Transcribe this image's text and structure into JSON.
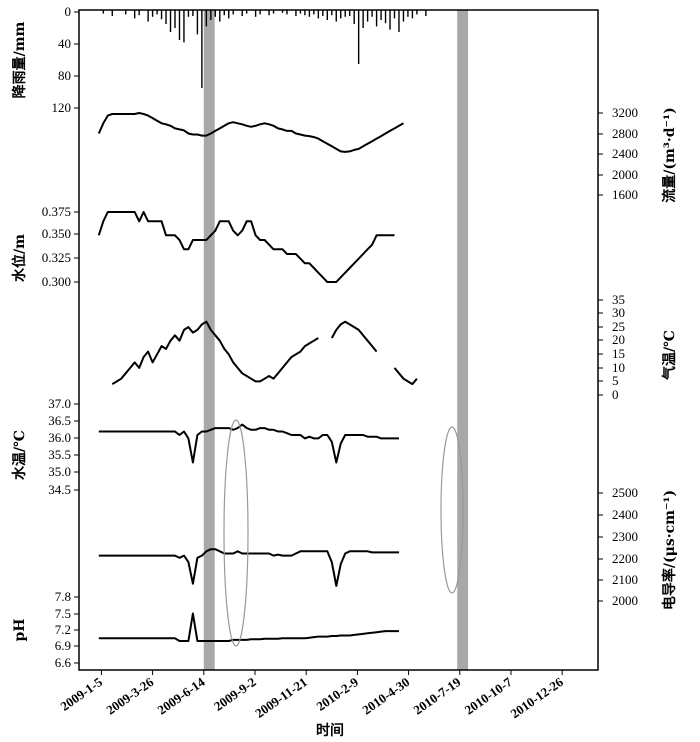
{
  "chart_data": {
    "type": "line",
    "x_axis": {
      "label": "时间",
      "tick_labels": [
        "2009-1-5",
        "2009-3-26",
        "2009-6-14",
        "2009-9-2",
        "2009-11-21",
        "2010-2-9",
        "2010-4-30",
        "2010-7-19",
        "2010-10-7",
        "2010-12-26"
      ]
    },
    "highlight_bands": [
      {
        "from": "2009-6-14",
        "to": "2009-7-1"
      },
      {
        "from": "2010-7-15",
        "to": "2010-8-1"
      }
    ],
    "panels": [
      {
        "key": "rain",
        "axis_label": "降雨量/mm",
        "axis_side": "left",
        "ticks": [
          "0",
          "40",
          "80",
          "120"
        ],
        "inverted": true,
        "ylim": [
          0,
          120
        ],
        "series": {
          "start": "2009-1-1",
          "step_days": 7,
          "values": [
            0,
            2,
            0,
            5,
            0,
            0,
            3,
            0,
            8,
            4,
            0,
            12,
            6,
            3,
            9,
            15,
            25,
            20,
            35,
            38,
            6,
            5,
            28,
            95,
            18,
            10,
            6,
            12,
            4,
            8,
            3,
            0,
            5,
            2,
            0,
            6,
            3,
            0,
            4,
            2,
            0,
            1,
            3,
            0,
            5,
            2,
            4,
            6,
            3,
            8,
            5,
            10,
            4,
            12,
            8,
            6,
            5,
            15,
            65,
            20,
            12,
            6,
            18,
            10,
            14,
            22,
            8,
            25,
            12,
            6,
            8,
            3,
            0,
            5
          ]
        }
      },
      {
        "key": "flow",
        "axis_label": "流量/(m³·d⁻¹)",
        "axis_side": "right",
        "ticks": [
          "3200",
          "2800",
          "2400",
          "2000",
          "1600"
        ],
        "ylim": [
          1600,
          3200
        ],
        "series": {
          "start": "2009-1-1",
          "step_days": 7,
          "values": [
            2800,
            3000,
            3150,
            3180,
            3180,
            3180,
            3180,
            3180,
            3180,
            3200,
            3180,
            3150,
            3100,
            3050,
            3000,
            2980,
            2950,
            2900,
            2880,
            2860,
            2800,
            2780,
            2780,
            2760,
            2760,
            2800,
            2850,
            2900,
            2950,
            3000,
            3020,
            3000,
            2980,
            2950,
            2930,
            2950,
            2980,
            3000,
            2980,
            2950,
            2900,
            2880,
            2850,
            2850,
            2800,
            2780,
            2760,
            2750,
            2730,
            2700,
            2650,
            2600,
            2550,
            2500,
            2450,
            2440,
            2450,
            2480,
            2500,
            2550,
            2600,
            2650,
            2700,
            2750,
            2800,
            2850,
            2900,
            2950,
            3000
          ]
        }
      },
      {
        "key": "level",
        "axis_label": "水位/m",
        "axis_side": "left",
        "ticks": [
          "0.375",
          "0.350",
          "0.325",
          "0.300"
        ],
        "ylim": [
          0.3,
          0.375
        ],
        "series": {
          "start": "2009-1-1",
          "step_days": 7,
          "values": [
            0.35,
            0.365,
            0.375,
            0.375,
            0.375,
            0.375,
            0.375,
            0.375,
            0.375,
            0.365,
            0.375,
            0.365,
            0.365,
            0.365,
            0.365,
            0.35,
            0.35,
            0.35,
            0.345,
            0.335,
            0.335,
            0.345,
            0.345,
            0.345,
            0.345,
            0.35,
            0.355,
            0.365,
            0.365,
            0.365,
            0.355,
            0.35,
            0.355,
            0.365,
            0.365,
            0.35,
            0.345,
            0.345,
            0.34,
            0.335,
            0.335,
            0.335,
            0.33,
            0.33,
            0.33,
            0.325,
            0.32,
            0.32,
            0.315,
            0.31,
            0.305,
            0.3,
            0.3,
            0.3,
            0.305,
            0.31,
            0.315,
            0.32,
            0.325,
            0.33,
            0.335,
            0.34,
            0.35,
            0.35,
            0.35,
            0.35,
            0.35
          ]
        }
      },
      {
        "key": "airtemp",
        "axis_label": "气温/℃",
        "axis_side": "right",
        "ticks": [
          "35",
          "30",
          "25",
          "20",
          "15",
          "10",
          "5",
          "0"
        ],
        "ylim": [
          0,
          35
        ],
        "series": {
          "start": "2009-1-22",
          "step_days": 7,
          "values": [
            4,
            5,
            6,
            8,
            10,
            12,
            10,
            14,
            16,
            12,
            15,
            18,
            17,
            20,
            22,
            20,
            24,
            25,
            23,
            24,
            26,
            27,
            24,
            22,
            20,
            17,
            15,
            12,
            10,
            8,
            7,
            6,
            5,
            5,
            6,
            7,
            6,
            8,
            10,
            12,
            14,
            15,
            16,
            18,
            19,
            20,
            21,
            null,
            null,
            21,
            24,
            26,
            27,
            26,
            25,
            24,
            22,
            20,
            18,
            16,
            null,
            null,
            null,
            10,
            8,
            6,
            5,
            4,
            6
          ]
        }
      },
      {
        "key": "watertemp",
        "axis_label": "水温/℃",
        "axis_side": "left",
        "ticks": [
          "37.0",
          "36.5",
          "36.0",
          "35.5",
          "35.0",
          "34.5"
        ],
        "ylim": [
          34.5,
          37.0
        ],
        "series": {
          "start": "2009-1-1",
          "step_days": 7,
          "values": [
            36.2,
            36.2,
            36.2,
            36.2,
            36.2,
            36.2,
            36.2,
            36.2,
            36.2,
            36.2,
            36.2,
            36.2,
            36.2,
            36.2,
            36.2,
            36.2,
            36.2,
            36.2,
            36.1,
            36.2,
            36.0,
            35.3,
            36.1,
            36.2,
            36.2,
            36.25,
            36.3,
            36.3,
            36.3,
            36.3,
            36.25,
            36.3,
            36.4,
            36.3,
            36.25,
            36.25,
            36.3,
            36.3,
            36.25,
            36.25,
            36.2,
            36.2,
            36.15,
            36.1,
            36.1,
            36.1,
            36.0,
            36.05,
            36.0,
            36.0,
            36.1,
            36.1,
            35.9,
            35.3,
            35.85,
            36.1,
            36.1,
            36.1,
            36.1,
            36.1,
            36.05,
            36.05,
            36.05,
            36.0,
            36.0,
            36.0,
            36.0,
            36.0
          ]
        }
      },
      {
        "key": "ec",
        "axis_label": "电导率/(μs·cm⁻¹)",
        "axis_side": "right",
        "ticks": [
          "2500",
          "2400",
          "2300",
          "2200",
          "2100",
          "2000"
        ],
        "ylim": [
          2000,
          2500
        ],
        "series": {
          "start": "2009-1-1",
          "step_days": 7,
          "values": [
            2210,
            2210,
            2210,
            2210,
            2210,
            2210,
            2210,
            2210,
            2210,
            2210,
            2210,
            2210,
            2210,
            2210,
            2210,
            2210,
            2210,
            2210,
            2200,
            2210,
            2180,
            2080,
            2200,
            2210,
            2230,
            2240,
            2240,
            2230,
            2220,
            2220,
            2220,
            2230,
            2220,
            2220,
            2220,
            2220,
            2220,
            2220,
            2220,
            2210,
            2215,
            2210,
            2210,
            2210,
            2220,
            2230,
            2230,
            2230,
            2230,
            2230,
            2230,
            2230,
            2180,
            2070,
            2170,
            2220,
            2230,
            2230,
            2230,
            2230,
            2230,
            2225,
            2225,
            2225,
            2225,
            2225,
            2225,
            2225
          ]
        }
      },
      {
        "key": "ph",
        "axis_label": "pH",
        "axis_side": "left",
        "ticks": [
          "7.8",
          "7.5",
          "7.2",
          "6.9",
          "6.6"
        ],
        "ylim": [
          6.6,
          7.8
        ],
        "series": {
          "start": "2009-1-1",
          "step_days": 7,
          "values": [
            7.05,
            7.05,
            7.05,
            7.05,
            7.05,
            7.05,
            7.05,
            7.05,
            7.05,
            7.05,
            7.05,
            7.05,
            7.05,
            7.05,
            7.05,
            7.05,
            7.05,
            7.05,
            7.0,
            7.0,
            7.0,
            7.5,
            7.0,
            7.0,
            7.0,
            7.0,
            7.0,
            7.0,
            7.0,
            7.0,
            7.02,
            7.02,
            7.02,
            7.02,
            7.03,
            7.03,
            7.03,
            7.04,
            7.04,
            7.04,
            7.04,
            7.05,
            7.05,
            7.05,
            7.05,
            7.05,
            7.05,
            7.06,
            7.07,
            7.08,
            7.08,
            7.08,
            7.09,
            7.09,
            7.1,
            7.1,
            7.1,
            7.11,
            7.12,
            7.13,
            7.14,
            7.15,
            7.16,
            7.17,
            7.18,
            7.18,
            7.18,
            7.18
          ]
        }
      }
    ]
  }
}
